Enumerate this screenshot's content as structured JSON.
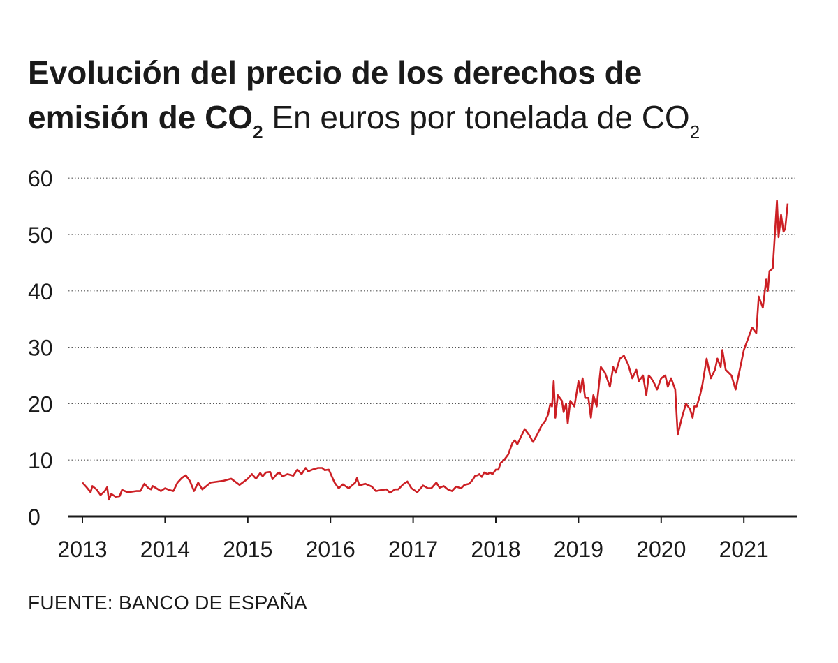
{
  "title": {
    "line1": "Evolución del precio de los derechos de",
    "line2": "emisión de CO",
    "line2_sub": "2",
    "subtitle": "En euros por tonelada de CO",
    "subtitle_sub": "2"
  },
  "source": "FUENTE: BANCO DE ESPAÑA",
  "colors": {
    "line": "#cc1f24",
    "axis": "#1a1a1a",
    "grid": "#555555"
  },
  "chart_data": {
    "type": "line",
    "ylim": [
      0,
      60
    ],
    "xlim": [
      2013,
      2021.6
    ],
    "y_ticks": [
      "0",
      "10",
      "20",
      "30",
      "40",
      "50",
      "60"
    ],
    "x_ticks": [
      "2013",
      "2014",
      "2015",
      "2016",
      "2017",
      "2018",
      "2019",
      "2020",
      "2021"
    ],
    "grid": true,
    "series": [
      {
        "values": [
          [
            2013.0,
            6.0
          ],
          [
            2013.05,
            5.2
          ],
          [
            2013.1,
            4.3
          ],
          [
            2013.12,
            5.4
          ],
          [
            2013.17,
            4.8
          ],
          [
            2013.22,
            3.8
          ],
          [
            2013.27,
            4.5
          ],
          [
            2013.3,
            5.2
          ],
          [
            2013.32,
            3.0
          ],
          [
            2013.35,
            4.0
          ],
          [
            2013.4,
            3.5
          ],
          [
            2013.45,
            3.6
          ],
          [
            2013.48,
            4.7
          ],
          [
            2013.55,
            4.3
          ],
          [
            2013.65,
            4.5
          ],
          [
            2013.7,
            4.5
          ],
          [
            2013.75,
            5.8
          ],
          [
            2013.8,
            5.0
          ],
          [
            2013.83,
            4.8
          ],
          [
            2013.85,
            5.4
          ],
          [
            2013.95,
            4.5
          ],
          [
            2014.0,
            5.0
          ],
          [
            2014.05,
            4.7
          ],
          [
            2014.1,
            4.5
          ],
          [
            2014.15,
            6.0
          ],
          [
            2014.2,
            6.8
          ],
          [
            2014.25,
            7.3
          ],
          [
            2014.3,
            6.3
          ],
          [
            2014.35,
            4.5
          ],
          [
            2014.4,
            6.0
          ],
          [
            2014.45,
            4.8
          ],
          [
            2014.55,
            6.0
          ],
          [
            2014.7,
            6.3
          ],
          [
            2014.8,
            6.7
          ],
          [
            2014.9,
            5.6
          ],
          [
            2015.0,
            6.7
          ],
          [
            2015.05,
            7.5
          ],
          [
            2015.1,
            6.7
          ],
          [
            2015.15,
            7.7
          ],
          [
            2015.18,
            7.1
          ],
          [
            2015.22,
            7.8
          ],
          [
            2015.27,
            7.9
          ],
          [
            2015.3,
            6.6
          ],
          [
            2015.35,
            7.5
          ],
          [
            2015.38,
            7.8
          ],
          [
            2015.42,
            7.1
          ],
          [
            2015.48,
            7.5
          ],
          [
            2015.55,
            7.2
          ],
          [
            2015.6,
            8.3
          ],
          [
            2015.65,
            7.5
          ],
          [
            2015.7,
            8.6
          ],
          [
            2015.73,
            8.0
          ],
          [
            2015.78,
            8.3
          ],
          [
            2015.85,
            8.6
          ],
          [
            2015.9,
            8.6
          ],
          [
            2015.93,
            8.2
          ],
          [
            2015.98,
            8.3
          ],
          [
            2016.05,
            6.0
          ],
          [
            2016.1,
            5.0
          ],
          [
            2016.15,
            5.7
          ],
          [
            2016.22,
            5.0
          ],
          [
            2016.3,
            6.0
          ],
          [
            2016.32,
            6.8
          ],
          [
            2016.35,
            5.5
          ],
          [
            2016.42,
            5.8
          ],
          [
            2016.5,
            5.3
          ],
          [
            2016.55,
            4.5
          ],
          [
            2016.62,
            4.7
          ],
          [
            2016.68,
            4.8
          ],
          [
            2016.72,
            4.2
          ],
          [
            2016.78,
            4.8
          ],
          [
            2016.82,
            4.8
          ],
          [
            2016.88,
            5.7
          ],
          [
            2016.93,
            6.2
          ],
          [
            2016.98,
            5.0
          ],
          [
            2017.05,
            4.3
          ],
          [
            2017.12,
            5.5
          ],
          [
            2017.18,
            5.0
          ],
          [
            2017.22,
            5.0
          ],
          [
            2017.28,
            6.0
          ],
          [
            2017.32,
            5.1
          ],
          [
            2017.37,
            5.4
          ],
          [
            2017.42,
            4.8
          ],
          [
            2017.47,
            4.5
          ],
          [
            2017.52,
            5.3
          ],
          [
            2017.58,
            5.0
          ],
          [
            2017.62,
            5.6
          ],
          [
            2017.68,
            5.8
          ],
          [
            2017.72,
            6.5
          ],
          [
            2017.75,
            7.2
          ],
          [
            2017.78,
            7.3
          ],
          [
            2017.8,
            7.5
          ],
          [
            2017.83,
            7.0
          ],
          [
            2017.86,
            7.8
          ],
          [
            2017.9,
            7.5
          ],
          [
            2017.93,
            7.8
          ],
          [
            2017.96,
            7.5
          ],
          [
            2018.0,
            8.3
          ],
          [
            2018.03,
            8.3
          ],
          [
            2018.06,
            9.5
          ],
          [
            2018.1,
            10.0
          ],
          [
            2018.15,
            11.0
          ],
          [
            2018.2,
            13.0
          ],
          [
            2018.23,
            13.5
          ],
          [
            2018.26,
            12.8
          ],
          [
            2018.3,
            14.0
          ],
          [
            2018.35,
            15.5
          ],
          [
            2018.4,
            14.5
          ],
          [
            2018.45,
            13.2
          ],
          [
            2018.5,
            14.5
          ],
          [
            2018.55,
            16.0
          ],
          [
            2018.6,
            17.0
          ],
          [
            2018.63,
            18.0
          ],
          [
            2018.66,
            20.0
          ],
          [
            2018.68,
            19.5
          ],
          [
            2018.7,
            24.0
          ],
          [
            2018.72,
            17.5
          ],
          [
            2018.75,
            21.5
          ],
          [
            2018.8,
            20.5
          ],
          [
            2018.82,
            18.5
          ],
          [
            2018.85,
            20.0
          ],
          [
            2018.87,
            16.5
          ],
          [
            2018.9,
            20.5
          ],
          [
            2018.95,
            19.5
          ],
          [
            2019.0,
            24.0
          ],
          [
            2019.02,
            22.0
          ],
          [
            2019.05,
            24.5
          ],
          [
            2019.08,
            21.0
          ],
          [
            2019.12,
            21.0
          ],
          [
            2019.15,
            17.5
          ],
          [
            2019.18,
            21.5
          ],
          [
            2019.22,
            19.5
          ],
          [
            2019.27,
            26.5
          ],
          [
            2019.32,
            25.5
          ],
          [
            2019.38,
            23.0
          ],
          [
            2019.42,
            26.5
          ],
          [
            2019.45,
            25.5
          ],
          [
            2019.5,
            28.0
          ],
          [
            2019.55,
            28.5
          ],
          [
            2019.6,
            27.0
          ],
          [
            2019.65,
            24.5
          ],
          [
            2019.7,
            26.0
          ],
          [
            2019.73,
            24.0
          ],
          [
            2019.78,
            25.0
          ],
          [
            2019.82,
            21.5
          ],
          [
            2019.85,
            25.0
          ],
          [
            2019.88,
            24.5
          ],
          [
            2019.92,
            23.5
          ],
          [
            2019.95,
            22.5
          ],
          [
            2020.0,
            24.5
          ],
          [
            2020.05,
            25.0
          ],
          [
            2020.08,
            23.0
          ],
          [
            2020.12,
            24.5
          ],
          [
            2020.17,
            22.5
          ],
          [
            2020.2,
            14.5
          ],
          [
            2020.25,
            17.5
          ],
          [
            2020.3,
            20.0
          ],
          [
            2020.35,
            19.0
          ],
          [
            2020.38,
            17.5
          ],
          [
            2020.4,
            19.5
          ],
          [
            2020.43,
            19.5
          ],
          [
            2020.47,
            21.5
          ],
          [
            2020.5,
            23.5
          ],
          [
            2020.55,
            28.0
          ],
          [
            2020.6,
            24.5
          ],
          [
            2020.65,
            26.0
          ],
          [
            2020.68,
            28.0
          ],
          [
            2020.72,
            26.5
          ],
          [
            2020.74,
            29.5
          ],
          [
            2020.78,
            26.0
          ],
          [
            2020.85,
            25.0
          ],
          [
            2020.9,
            22.5
          ],
          [
            2021.0,
            29.5
          ],
          [
            2021.05,
            31.5
          ],
          [
            2021.1,
            33.5
          ],
          [
            2021.15,
            32.5
          ],
          [
            2021.18,
            39.0
          ],
          [
            2021.23,
            37.0
          ],
          [
            2021.27,
            42.0
          ],
          [
            2021.29,
            40.0
          ],
          [
            2021.31,
            43.5
          ],
          [
            2021.35,
            44.0
          ],
          [
            2021.4,
            56.0
          ],
          [
            2021.42,
            49.5
          ],
          [
            2021.45,
            53.5
          ],
          [
            2021.48,
            50.5
          ],
          [
            2021.5,
            51.0
          ],
          [
            2021.53,
            55.5
          ]
        ]
      }
    ]
  }
}
